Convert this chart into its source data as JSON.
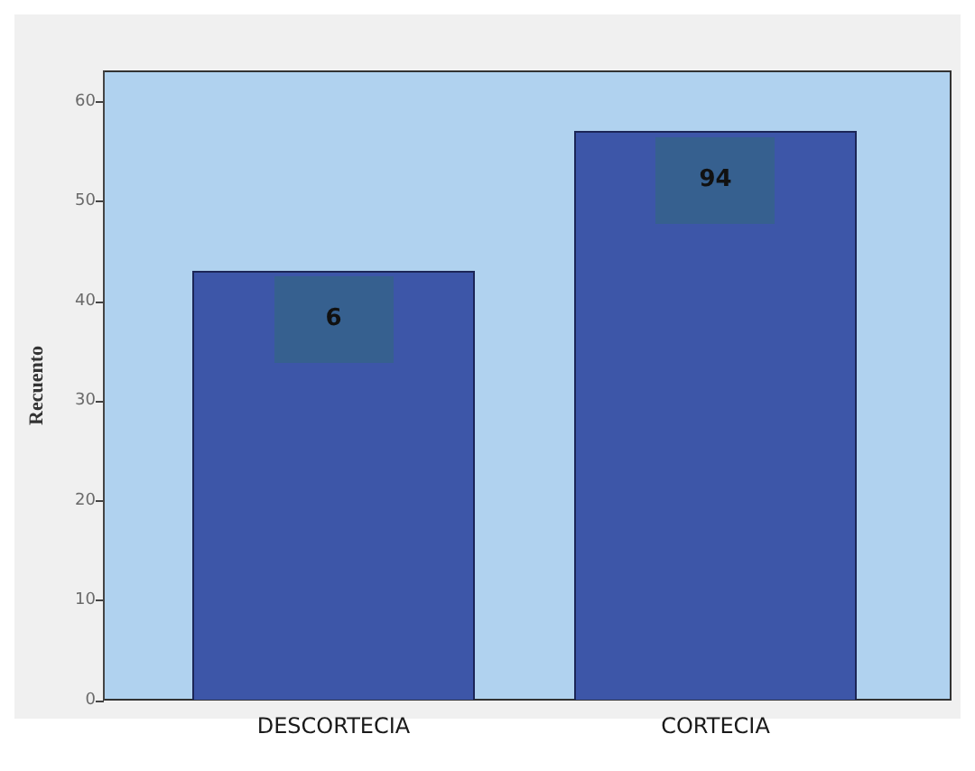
{
  "chart_data": {
    "type": "bar",
    "ylabel": "Recuento",
    "categories": [
      "DESCORTECIA",
      "CORTECIA"
    ],
    "values": [
      43,
      57
    ],
    "color": "#3d56a8",
    "ylim": [
      0,
      63
    ],
    "yticks": [
      0,
      10,
      20,
      30,
      40,
      50,
      60
    ],
    "annotations": [
      "6",
      "94"
    ]
  }
}
